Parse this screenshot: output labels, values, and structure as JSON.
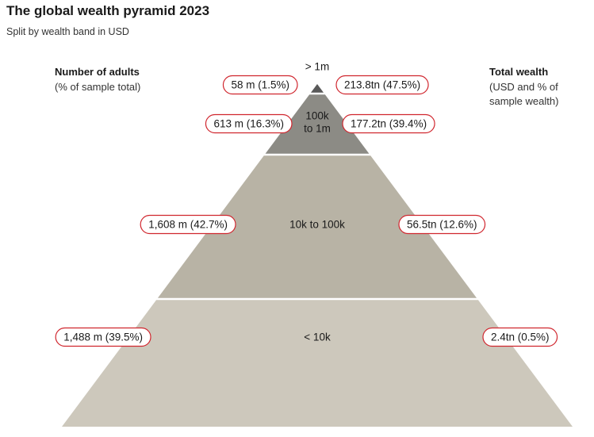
{
  "title": "The global wealth pyramid 2023",
  "subtitle": "Split by wealth band in USD",
  "left_header": {
    "title": "Number of adults",
    "subtitle": "(% of sample total)"
  },
  "right_header": {
    "title": "Total wealth",
    "subtitle_line1": "(USD and % of",
    "subtitle_line2": "sample wealth)"
  },
  "colors": {
    "accent": "#d0262e",
    "tiers": [
      "#595959",
      "#8c8b85",
      "#b8b3a5",
      "#cdc8bc"
    ]
  },
  "chart_data": {
    "type": "pyramid",
    "tiers": [
      {
        "band": "> 1m",
        "band_lines": [
          "> 1m"
        ],
        "adults": "58 m (1.5%)",
        "adults_m": 58,
        "adults_pct": 1.5,
        "wealth": "213.8tn (47.5%)",
        "wealth_tn": 213.8,
        "wealth_pct": 47.5
      },
      {
        "band": "100k to 1m",
        "band_lines": [
          "100k",
          "to 1m"
        ],
        "adults": "613 m (16.3%)",
        "adults_m": 613,
        "adults_pct": 16.3,
        "wealth": "177.2tn (39.4%)",
        "wealth_tn": 177.2,
        "wealth_pct": 39.4
      },
      {
        "band": "10k to 100k",
        "band_lines": [
          "10k to 100k"
        ],
        "adults": "1,608 m (42.7%)",
        "adults_m": 1608,
        "adults_pct": 42.7,
        "wealth": "56.5tn (12.6%)",
        "wealth_tn": 56.5,
        "wealth_pct": 12.6
      },
      {
        "band": "< 10k",
        "band_lines": [
          "< 10k"
        ],
        "adults": "1,488 m (39.5%)",
        "adults_m": 1488,
        "adults_pct": 39.5,
        "wealth": "2.4tn (0.5%)",
        "wealth_tn": 2.4,
        "wealth_pct": 0.5
      }
    ]
  }
}
